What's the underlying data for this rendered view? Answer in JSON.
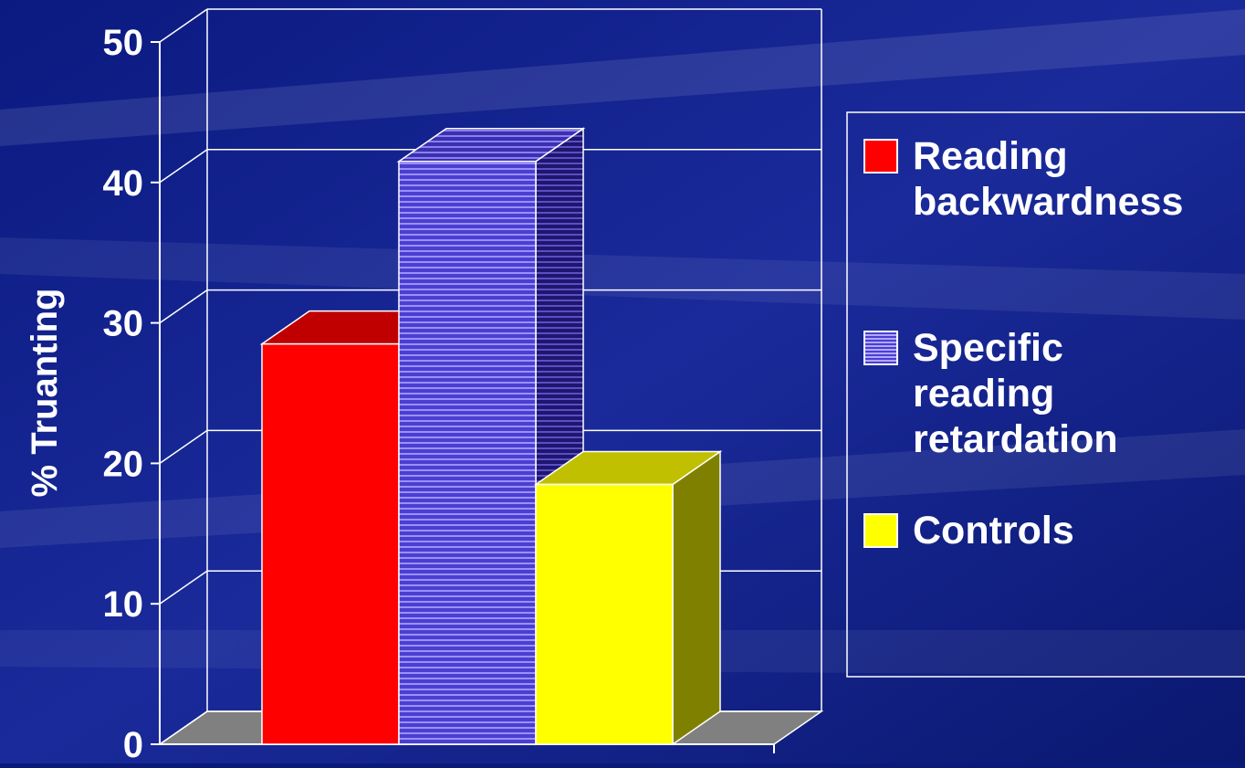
{
  "colors": {
    "background": "#0a1a7a",
    "grid": "#ffffff",
    "floor": "#808080",
    "text": "#ffffff"
  },
  "chart_data": {
    "type": "bar",
    "title": "",
    "xlabel": "",
    "ylabel": "% Truanting",
    "ylim": [
      0,
      50
    ],
    "yticks": [
      0,
      10,
      20,
      30,
      40,
      50
    ],
    "grid": true,
    "three_d": true,
    "legend_position": "right",
    "series": [
      {
        "name": "Reading backwardness",
        "value": 28.5,
        "color": "#ff0000",
        "top_color": "#c00000",
        "side_color": "#c00000",
        "pattern": "solid"
      },
      {
        "name": "Specific reading retardation",
        "value": 41.5,
        "color": "#4b3fd0",
        "top_color": "#3a30b0",
        "side_color": "#2a2080",
        "pattern": "horizontal-lines"
      },
      {
        "name": "Controls",
        "value": 18.5,
        "color": "#ffff00",
        "top_color": "#c0c000",
        "side_color": "#808000",
        "pattern": "solid"
      }
    ],
    "legend": {
      "items": [
        {
          "lines": [
            "Reading",
            "backwardness"
          ]
        },
        {
          "lines": [
            "Specific",
            "reading",
            "retardation"
          ]
        },
        {
          "lines": [
            "Controls"
          ]
        }
      ]
    }
  }
}
